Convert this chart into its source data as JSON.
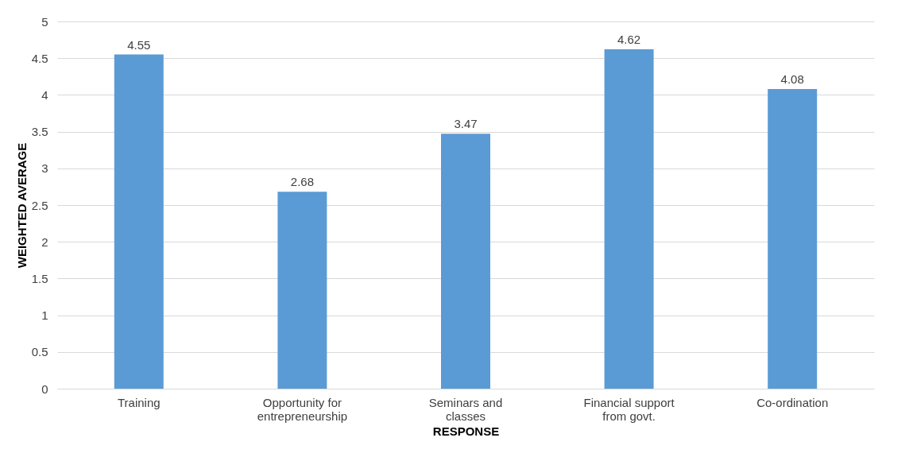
{
  "chart_data": {
    "type": "bar",
    "xlabel": "RESPONSE",
    "ylabel": "WEIGHTED AVERAGE",
    "categories": [
      "Training",
      "Opportunity for entrepreneurship",
      "Seminars and classes",
      "Financial support from govt.",
      "Co-ordination"
    ],
    "values": [
      4.55,
      2.68,
      3.47,
      4.62,
      4.08
    ],
    "color": "#5b9bd5",
    "ylim": [
      0,
      5
    ],
    "yticks": [
      0,
      0.5,
      1,
      1.5,
      2,
      2.5,
      3,
      3.5,
      4,
      4.5,
      5
    ],
    "grid": "y",
    "data_labels": true
  }
}
